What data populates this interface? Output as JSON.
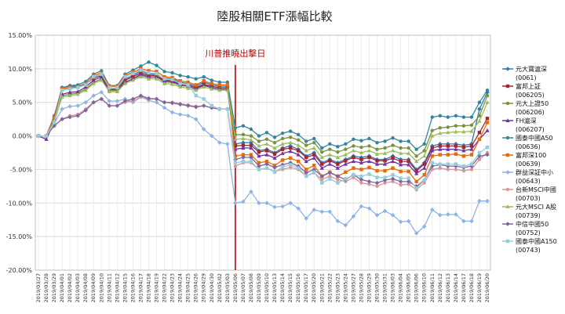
{
  "chart_data": {
    "type": "line",
    "title": "陸股相關ETF漲幅比較",
    "annotation": "川普推曉出擊日",
    "annotation_at": "2019/05/06",
    "ylim": [
      -0.2,
      0.15
    ],
    "yticks": [
      "15.00%",
      "10.00%",
      "5.00%",
      "0.00%",
      "-5.00%",
      "-10.00%",
      "-15.00%",
      "-20.00%"
    ],
    "ytick_values": [
      0.15,
      0.1,
      0.05,
      0.0,
      -0.05,
      -0.1,
      -0.15,
      -0.2
    ],
    "grid": true,
    "legend_position": "right",
    "x": [
      "2019/03/27",
      "2019/03/28",
      "2019/03/29",
      "2019/04/01",
      "2019/04/02",
      "2019/04/03",
      "2019/04/08",
      "2019/04/09",
      "2019/04/10",
      "2019/04/11",
      "2019/04/12",
      "2019/04/15",
      "2019/04/16",
      "2019/04/17",
      "2019/04/18",
      "2019/04/19",
      "2019/04/22",
      "2019/04/23",
      "2019/04/24",
      "2019/04/25",
      "2019/04/26",
      "2019/04/29",
      "2019/04/30",
      "2019/05/02",
      "2019/05/03",
      "2019/05/06",
      "2019/05/07",
      "2019/05/08",
      "2019/05/09",
      "2019/05/10",
      "2019/05/13",
      "2019/05/14",
      "2019/05/15",
      "2019/05/16",
      "2019/05/17",
      "2019/05/20",
      "2019/05/21",
      "2019/05/22",
      "2019/05/23",
      "2019/05/24",
      "2019/05/27",
      "2019/05/28",
      "2019/05/29",
      "2019/05/30",
      "2019/05/31",
      "2019/06/03",
      "2019/06/04",
      "2019/06/05",
      "2019/06/06",
      "2019/06/10",
      "2019/06/11",
      "2019/06/12",
      "2019/06/13",
      "2019/06/14",
      "2019/06/17",
      "2019/06/18",
      "2019/06/19",
      "2019/06/20"
    ],
    "series": [
      {
        "name": "元大寶滬深",
        "code": "(0061)",
        "color": "#2e75b6",
        "marker": "diamond",
        "values": [
          0,
          0,
          0.022,
          0.072,
          0.074,
          0.074,
          0.078,
          0.088,
          0.092,
          0.07,
          0.07,
          0.085,
          0.09,
          0.097,
          0.092,
          0.092,
          0.086,
          0.085,
          0.08,
          0.078,
          0.074,
          0.08,
          0.076,
          0.074,
          0.074,
          -0.012,
          -0.01,
          -0.01,
          -0.022,
          -0.02,
          -0.025,
          -0.018,
          -0.015,
          -0.02,
          -0.03,
          -0.025,
          -0.04,
          -0.035,
          -0.04,
          -0.035,
          -0.03,
          -0.032,
          -0.03,
          -0.035,
          -0.035,
          -0.03,
          -0.035,
          -0.035,
          -0.05,
          -0.04,
          -0.015,
          -0.012,
          -0.012,
          -0.012,
          -0.014,
          -0.012,
          0.04,
          0.065
        ]
      },
      {
        "name": "富邦上証",
        "code": "(006205)",
        "color": "#a4262c",
        "marker": "square",
        "values": [
          0,
          0,
          0.025,
          0.07,
          0.072,
          0.073,
          0.077,
          0.086,
          0.09,
          0.069,
          0.069,
          0.083,
          0.088,
          0.094,
          0.09,
          0.09,
          0.083,
          0.082,
          0.077,
          0.076,
          0.072,
          0.077,
          0.074,
          0.072,
          0.072,
          -0.015,
          -0.014,
          -0.014,
          -0.024,
          -0.022,
          -0.027,
          -0.02,
          -0.018,
          -0.022,
          -0.032,
          -0.028,
          -0.042,
          -0.037,
          -0.042,
          -0.037,
          -0.032,
          -0.035,
          -0.032,
          -0.037,
          -0.037,
          -0.033,
          -0.038,
          -0.038,
          -0.052,
          -0.042,
          -0.018,
          -0.015,
          -0.015,
          -0.015,
          -0.017,
          -0.015,
          0.005,
          0.026
        ]
      },
      {
        "name": "元大上證50",
        "code": "(006206)",
        "color": "#77933c",
        "marker": "circle",
        "values": [
          0,
          0,
          0.02,
          0.06,
          0.062,
          0.064,
          0.07,
          0.08,
          0.085,
          0.068,
          0.068,
          0.08,
          0.085,
          0.09,
          0.087,
          0.088,
          0.08,
          0.08,
          0.075,
          0.074,
          0.07,
          0.075,
          0.072,
          0.07,
          0.07,
          0.002,
          0.002,
          0.0,
          -0.008,
          -0.005,
          -0.01,
          -0.004,
          -0.002,
          -0.006,
          -0.014,
          -0.01,
          -0.024,
          -0.02,
          -0.024,
          -0.02,
          -0.015,
          -0.017,
          -0.015,
          -0.02,
          -0.018,
          -0.014,
          -0.018,
          -0.018,
          -0.03,
          -0.022,
          0.008,
          0.012,
          0.013,
          0.015,
          0.015,
          0.016,
          0.03,
          0.06
        ]
      },
      {
        "name": "FH滬深",
        "code": "(006207)",
        "color": "#7030a0",
        "marker": "triangle",
        "values": [
          0,
          -0.005,
          0.02,
          0.062,
          0.065,
          0.066,
          0.073,
          0.083,
          0.088,
          0.066,
          0.066,
          0.08,
          0.085,
          0.092,
          0.088,
          0.088,
          0.082,
          0.081,
          0.076,
          0.074,
          0.07,
          0.076,
          0.072,
          0.07,
          0.07,
          -0.02,
          -0.018,
          -0.018,
          -0.03,
          -0.028,
          -0.033,
          -0.026,
          -0.023,
          -0.028,
          -0.038,
          -0.033,
          -0.048,
          -0.042,
          -0.048,
          -0.042,
          -0.038,
          -0.04,
          -0.038,
          -0.042,
          -0.042,
          -0.038,
          -0.043,
          -0.043,
          -0.056,
          -0.048,
          -0.022,
          -0.02,
          -0.02,
          -0.02,
          -0.022,
          -0.02,
          -0.005,
          0.008
        ]
      },
      {
        "name": "國泰中國A50",
        "code": "(00636)",
        "color": "#31859c",
        "marker": "circle",
        "values": [
          0,
          0,
          0.03,
          0.072,
          0.075,
          0.076,
          0.081,
          0.092,
          0.097,
          0.075,
          0.075,
          0.092,
          0.098,
          0.104,
          0.11,
          0.105,
          0.096,
          0.094,
          0.09,
          0.088,
          0.085,
          0.088,
          0.083,
          0.08,
          0.08,
          0.012,
          0.015,
          0.01,
          0.0,
          0.005,
          -0.002,
          0.004,
          0.007,
          0.002,
          -0.008,
          -0.004,
          -0.018,
          -0.012,
          -0.016,
          -0.012,
          -0.005,
          -0.007,
          -0.004,
          -0.01,
          -0.008,
          -0.003,
          -0.008,
          -0.008,
          -0.02,
          -0.012,
          0.028,
          0.03,
          0.028,
          0.03,
          0.028,
          0.028,
          0.05,
          0.068
        ]
      },
      {
        "name": "富邦深100",
        "code": "(00639)",
        "color": "#e46c0a",
        "marker": "square",
        "values": [
          0,
          0,
          0.028,
          0.07,
          0.072,
          0.073,
          0.078,
          0.09,
          0.094,
          0.074,
          0.074,
          0.09,
          0.095,
          0.1,
          0.097,
          0.096,
          0.088,
          0.087,
          0.082,
          0.08,
          0.076,
          0.082,
          0.078,
          0.076,
          0.076,
          -0.03,
          -0.028,
          -0.028,
          -0.04,
          -0.038,
          -0.044,
          -0.036,
          -0.033,
          -0.038,
          -0.05,
          -0.044,
          -0.06,
          -0.054,
          -0.06,
          -0.054,
          -0.048,
          -0.05,
          -0.047,
          -0.052,
          -0.052,
          -0.048,
          -0.053,
          -0.053,
          -0.068,
          -0.058,
          -0.03,
          -0.028,
          -0.028,
          -0.027,
          -0.03,
          -0.028,
          -0.005,
          0.02
        ]
      },
      {
        "name": "群益深証中小",
        "code": "(00643)",
        "color": "#8eb4e3",
        "marker": "diamond",
        "values": [
          0,
          0,
          0.018,
          0.04,
          0.044,
          0.045,
          0.05,
          0.06,
          0.065,
          0.052,
          0.052,
          0.055,
          0.05,
          0.058,
          0.053,
          0.05,
          0.042,
          0.035,
          0.032,
          0.03,
          0.025,
          0.01,
          0.0,
          -0.01,
          -0.012,
          -0.1,
          -0.098,
          -0.083,
          -0.1,
          -0.1,
          -0.106,
          -0.105,
          -0.1,
          -0.108,
          -0.123,
          -0.11,
          -0.113,
          -0.113,
          -0.127,
          -0.133,
          -0.12,
          -0.105,
          -0.108,
          -0.118,
          -0.112,
          -0.118,
          -0.128,
          -0.127,
          -0.145,
          -0.135,
          -0.11,
          -0.118,
          -0.117,
          -0.117,
          -0.127,
          -0.127,
          -0.097,
          -0.097
        ]
      },
      {
        "name": "台新MSCI中國",
        "code": "(00703)",
        "color": "#d99694",
        "marker": "circle",
        "values": [
          0,
          0,
          0.015,
          0.025,
          0.03,
          0.032,
          0.04,
          0.05,
          0.055,
          0.045,
          0.045,
          0.05,
          0.052,
          0.058,
          0.055,
          0.055,
          0.05,
          0.05,
          0.048,
          0.046,
          0.044,
          0.045,
          0.042,
          0.04,
          0.04,
          -0.045,
          -0.04,
          -0.04,
          -0.05,
          -0.048,
          -0.053,
          -0.05,
          -0.047,
          -0.05,
          -0.06,
          -0.055,
          -0.065,
          -0.06,
          -0.065,
          -0.068,
          -0.062,
          -0.07,
          -0.072,
          -0.075,
          -0.07,
          -0.068,
          -0.073,
          -0.072,
          -0.08,
          -0.07,
          -0.05,
          -0.048,
          -0.05,
          -0.05,
          -0.052,
          -0.05,
          -0.035,
          -0.025
        ]
      },
      {
        "name": "元大MSCI A股",
        "code": "(00739)",
        "color": "#9bbb59",
        "marker": "triangle",
        "values": [
          0,
          0,
          0.022,
          0.058,
          0.06,
          0.062,
          0.068,
          0.078,
          0.083,
          0.066,
          0.066,
          0.078,
          0.083,
          0.088,
          0.085,
          0.085,
          0.078,
          0.077,
          0.073,
          0.071,
          0.068,
          0.073,
          0.07,
          0.068,
          0.068,
          -0.005,
          -0.004,
          -0.006,
          -0.015,
          -0.012,
          -0.018,
          -0.012,
          -0.01,
          -0.014,
          -0.022,
          -0.018,
          -0.032,
          -0.028,
          -0.032,
          -0.028,
          -0.022,
          -0.025,
          -0.022,
          -0.027,
          -0.026,
          -0.022,
          -0.026,
          -0.026,
          -0.038,
          -0.03,
          0.0,
          0.004,
          0.005,
          0.006,
          0.006,
          0.007,
          0.022,
          0.05
        ]
      },
      {
        "name": "中信中國50",
        "code": "(00752)",
        "color": "#8064a2",
        "marker": "diamond",
        "values": [
          0,
          0,
          0.015,
          0.025,
          0.028,
          0.03,
          0.038,
          0.05,
          0.055,
          0.045,
          0.045,
          0.052,
          0.055,
          0.06,
          0.056,
          0.055,
          0.05,
          0.049,
          0.047,
          0.045,
          0.043,
          0.045,
          0.042,
          0.04,
          0.04,
          -0.035,
          -0.032,
          -0.032,
          -0.045,
          -0.042,
          -0.047,
          -0.043,
          -0.04,
          -0.045,
          -0.055,
          -0.05,
          -0.06,
          -0.055,
          -0.06,
          -0.065,
          -0.058,
          -0.065,
          -0.068,
          -0.07,
          -0.066,
          -0.064,
          -0.068,
          -0.068,
          -0.075,
          -0.066,
          -0.045,
          -0.043,
          -0.045,
          -0.045,
          -0.047,
          -0.045,
          -0.03,
          -0.028
        ]
      },
      {
        "name": "國泰中國A150",
        "code": "(00743)",
        "color": "#93cddd",
        "marker": "square",
        "values": [
          0,
          0,
          0.02,
          0.068,
          0.07,
          0.072,
          0.076,
          0.088,
          0.092,
          0.072,
          0.072,
          0.088,
          0.093,
          0.098,
          0.094,
          0.093,
          0.085,
          0.084,
          0.078,
          0.076,
          0.06,
          0.055,
          0.045,
          0.04,
          0.04,
          -0.04,
          -0.038,
          -0.038,
          -0.05,
          -0.048,
          -0.054,
          -0.046,
          -0.043,
          -0.048,
          -0.06,
          -0.054,
          -0.07,
          -0.064,
          -0.07,
          -0.064,
          -0.058,
          -0.06,
          -0.057,
          -0.062,
          -0.062,
          -0.058,
          -0.063,
          -0.063,
          -0.078,
          -0.066,
          -0.04,
          -0.042,
          -0.042,
          -0.042,
          -0.045,
          -0.042,
          -0.025,
          -0.017
        ]
      }
    ]
  }
}
